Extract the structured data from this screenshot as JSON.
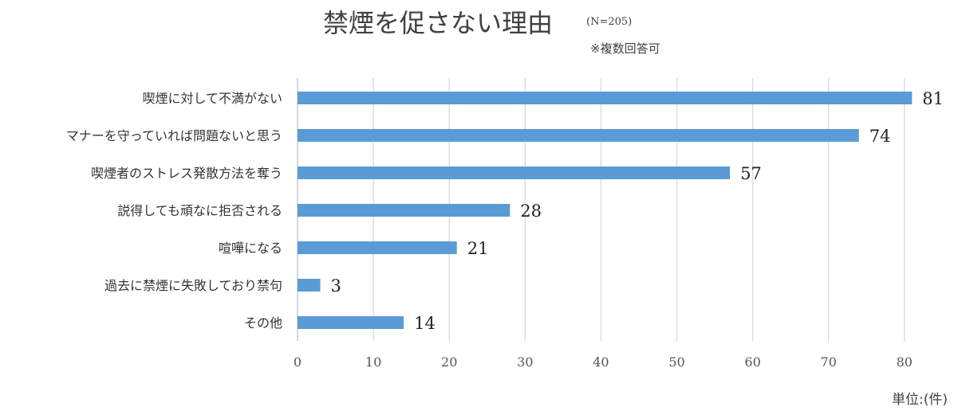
{
  "chart_data": {
    "type": "bar",
    "orientation": "horizontal",
    "title": "禁煙を促さない理由",
    "subtitle": "(N=205)",
    "note": "※複数回答可",
    "unit_label": "単位:(件)",
    "categories": [
      "喫煙に対して不満がない",
      "マナーを守っていれば問題ないと思う",
      "喫煙者のストレス発散方法を奪う",
      "説得しても頑なに拒否される",
      "喧嘩になる",
      "過去に禁煙に失敗しており禁句",
      "その他"
    ],
    "values": [
      81,
      74,
      57,
      28,
      21,
      3,
      14
    ],
    "xlim": [
      0,
      85
    ],
    "x_ticks": [
      0,
      10,
      20,
      30,
      40,
      50,
      60,
      70,
      80
    ],
    "grid": true,
    "colors": {
      "bar": "#5b9bd5",
      "grid": "#d9d9d9",
      "axis": "#bfbfbf"
    }
  }
}
